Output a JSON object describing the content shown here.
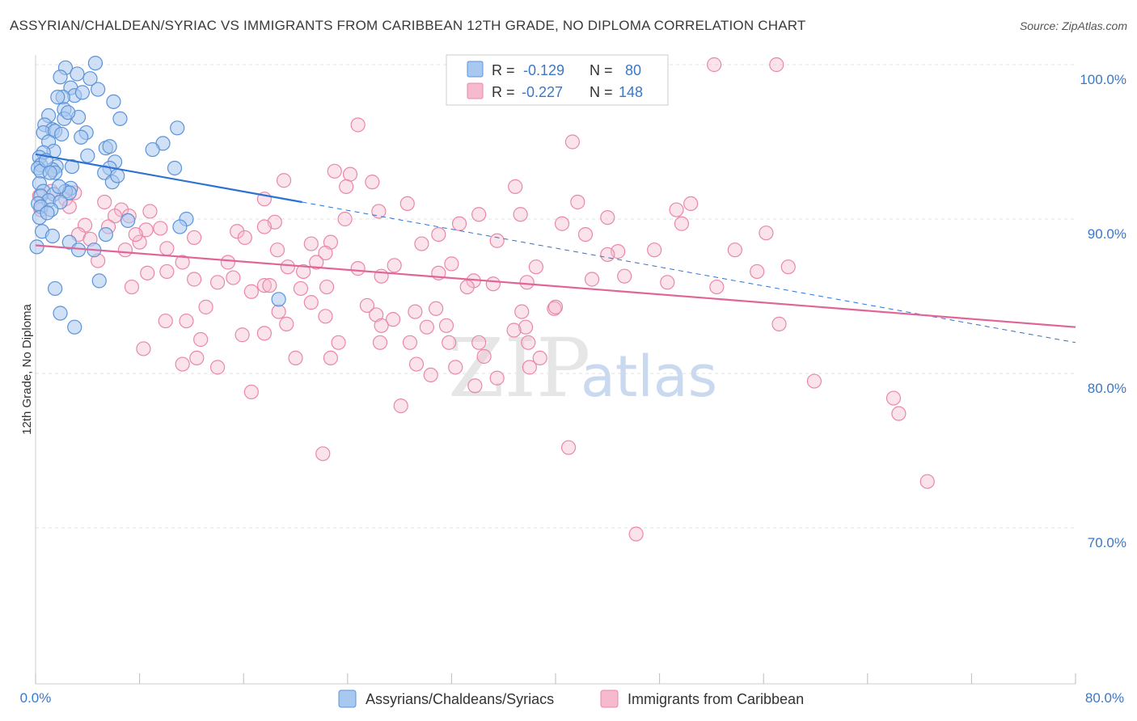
{
  "header": {
    "title": "ASSYRIAN/CHALDEAN/SYRIAC VS IMMIGRANTS FROM CARIBBEAN 12TH GRADE, NO DIPLOMA CORRELATION CHART",
    "source": "Source: ZipAtlas.com"
  },
  "watermark": {
    "zip": "ZIP",
    "atlas": "atlas"
  },
  "legend": {
    "rows": [
      {
        "r_label": "R =",
        "r_value": "-0.129",
        "n_label": "N =",
        "n_value": "80",
        "color": "#a9c8f0"
      },
      {
        "r_label": "R =",
        "r_value": "-0.227",
        "n_label": "N =",
        "n_value": "148",
        "color": "#f6b9cd"
      }
    ]
  },
  "chart_data": {
    "type": "scatter",
    "ylabel": "12th Grade, No Diploma",
    "xlim": [
      0,
      80
    ],
    "ylim": [
      60,
      101.5
    ],
    "x_tick_labels": [
      "0.0%",
      "80.0%"
    ],
    "y_ticks": [
      {
        "value": 100,
        "label": "100.0%"
      },
      {
        "value": 90,
        "label": "90.0%"
      },
      {
        "value": 80,
        "label": "80.0%"
      },
      {
        "value": 70,
        "label": "70.0%"
      }
    ],
    "grid": "horizontal dashed",
    "series": [
      {
        "name": "Assyrians/Chaldeans/Syriacs",
        "color": "#5b93d8",
        "fill": "#a9c8f0",
        "trend": {
          "x0": 0,
          "y0": 94.2,
          "x1": 20.5,
          "y1": 91.1,
          "dash_to_x": 80,
          "dash_to_y": 82.0,
          "color": "#2d72d2"
        },
        "points": [
          [
            2.3,
            99.8
          ],
          [
            4.6,
            100.1
          ],
          [
            3.2,
            99.4
          ],
          [
            1.9,
            99.2
          ],
          [
            4.8,
            98.4
          ],
          [
            2.7,
            98.5
          ],
          [
            3.0,
            98.0
          ],
          [
            2.1,
            97.9
          ],
          [
            1.7,
            97.9
          ],
          [
            6.0,
            97.6
          ],
          [
            2.2,
            97.1
          ],
          [
            1.0,
            96.7
          ],
          [
            2.2,
            96.5
          ],
          [
            3.3,
            96.6
          ],
          [
            6.5,
            96.5
          ],
          [
            0.7,
            96.1
          ],
          [
            1.3,
            95.8
          ],
          [
            0.6,
            95.6
          ],
          [
            3.9,
            95.6
          ],
          [
            1.5,
            95.7
          ],
          [
            10.9,
            95.9
          ],
          [
            3.5,
            95.3
          ],
          [
            1.0,
            95.0
          ],
          [
            9.8,
            94.9
          ],
          [
            5.4,
            94.6
          ],
          [
            5.7,
            94.7
          ],
          [
            9.0,
            94.5
          ],
          [
            1.4,
            94.4
          ],
          [
            0.6,
            94.3
          ],
          [
            4.0,
            94.1
          ],
          [
            0.3,
            94.0
          ],
          [
            6.1,
            93.7
          ],
          [
            2.8,
            93.4
          ],
          [
            0.4,
            93.5
          ],
          [
            0.2,
            93.3
          ],
          [
            1.6,
            93.4
          ],
          [
            5.7,
            93.3
          ],
          [
            0.4,
            93.1
          ],
          [
            10.7,
            93.3
          ],
          [
            1.3,
            93.2
          ],
          [
            1.5,
            93.0
          ],
          [
            5.3,
            93.0
          ],
          [
            5.9,
            92.4
          ],
          [
            0.3,
            92.3
          ],
          [
            2.7,
            92.0
          ],
          [
            0.6,
            91.8
          ],
          [
            2.3,
            91.8
          ],
          [
            1.4,
            91.6
          ],
          [
            0.4,
            91.5
          ],
          [
            2.6,
            91.7
          ],
          [
            1.0,
            91.2
          ],
          [
            1.9,
            91.1
          ],
          [
            0.2,
            91.0
          ],
          [
            0.4,
            90.8
          ],
          [
            1.2,
            90.6
          ],
          [
            11.6,
            90.0
          ],
          [
            7.1,
            89.9
          ],
          [
            11.1,
            89.5
          ],
          [
            0.5,
            89.2
          ],
          [
            1.3,
            88.9
          ],
          [
            5.4,
            89.0
          ],
          [
            2.6,
            88.5
          ],
          [
            4.5,
            88.0
          ],
          [
            3.3,
            88.0
          ],
          [
            0.1,
            88.2
          ],
          [
            4.9,
            86.0
          ],
          [
            1.5,
            85.5
          ],
          [
            18.7,
            84.8
          ],
          [
            1.9,
            83.9
          ],
          [
            3.0,
            83.0
          ],
          [
            0.3,
            90.1
          ],
          [
            1.8,
            92.1
          ],
          [
            0.9,
            90.4
          ],
          [
            2.5,
            96.9
          ],
          [
            3.6,
            98.2
          ],
          [
            4.2,
            99.1
          ],
          [
            0.8,
            93.8
          ],
          [
            6.3,
            92.8
          ],
          [
            2.0,
            95.5
          ],
          [
            1.1,
            93.0
          ]
        ]
      },
      {
        "name": "Immigrants from Caribbean",
        "color": "#ea87a8",
        "fill": "#f6b9cd",
        "trend": {
          "x0": 0,
          "y0": 88.3,
          "x1": 80,
          "y1": 83.0,
          "color": "#e06596"
        },
        "points": [
          [
            52.2,
            100.0
          ],
          [
            57.0,
            100.0
          ],
          [
            24.8,
            96.1
          ],
          [
            41.3,
            95.0
          ],
          [
            23.0,
            93.1
          ],
          [
            24.2,
            92.9
          ],
          [
            19.1,
            92.5
          ],
          [
            25.9,
            92.4
          ],
          [
            23.9,
            92.1
          ],
          [
            36.9,
            92.1
          ],
          [
            17.6,
            91.3
          ],
          [
            28.6,
            91.0
          ],
          [
            41.7,
            91.1
          ],
          [
            50.4,
            91.0
          ],
          [
            1.2,
            91.8
          ],
          [
            3.0,
            91.7
          ],
          [
            2.3,
            91.3
          ],
          [
            5.3,
            91.1
          ],
          [
            2.6,
            90.8
          ],
          [
            0.4,
            90.6
          ],
          [
            0.3,
            91.5
          ],
          [
            6.6,
            90.6
          ],
          [
            8.8,
            90.5
          ],
          [
            26.4,
            90.5
          ],
          [
            34.1,
            90.3
          ],
          [
            37.3,
            90.3
          ],
          [
            49.3,
            90.6
          ],
          [
            44.0,
            90.1
          ],
          [
            6.1,
            90.2
          ],
          [
            7.2,
            90.2
          ],
          [
            23.8,
            90.0
          ],
          [
            40.5,
            89.7
          ],
          [
            18.4,
            89.8
          ],
          [
            17.6,
            89.5
          ],
          [
            32.6,
            89.7
          ],
          [
            5.6,
            89.5
          ],
          [
            3.8,
            89.6
          ],
          [
            15.5,
            89.2
          ],
          [
            31.0,
            89.0
          ],
          [
            42.3,
            89.0
          ],
          [
            49.7,
            89.7
          ],
          [
            56.2,
            89.1
          ],
          [
            3.3,
            89.0
          ],
          [
            8.5,
            89.3
          ],
          [
            12.2,
            88.8
          ],
          [
            16.1,
            88.8
          ],
          [
            21.2,
            88.4
          ],
          [
            22.7,
            88.5
          ],
          [
            29.7,
            88.4
          ],
          [
            35.5,
            88.6
          ],
          [
            8.0,
            88.5
          ],
          [
            4.2,
            88.7
          ],
          [
            6.9,
            88.0
          ],
          [
            10.1,
            88.1
          ],
          [
            18.6,
            88.0
          ],
          [
            22.3,
            87.8
          ],
          [
            21.6,
            87.2
          ],
          [
            14.8,
            87.2
          ],
          [
            4.8,
            87.3
          ],
          [
            11.3,
            87.2
          ],
          [
            32.0,
            87.1
          ],
          [
            44.8,
            87.9
          ],
          [
            47.6,
            88.0
          ],
          [
            44.0,
            87.7
          ],
          [
            53.8,
            88.0
          ],
          [
            27.6,
            87.0
          ],
          [
            38.5,
            86.9
          ],
          [
            57.9,
            86.9
          ],
          [
            20.6,
            86.6
          ],
          [
            10.1,
            86.6
          ],
          [
            12.2,
            86.1
          ],
          [
            14.0,
            85.9
          ],
          [
            31.0,
            86.5
          ],
          [
            26.6,
            86.3
          ],
          [
            42.8,
            86.1
          ],
          [
            48.6,
            85.9
          ],
          [
            33.7,
            86.0
          ],
          [
            37.8,
            85.9
          ],
          [
            15.2,
            86.2
          ],
          [
            35.2,
            85.8
          ],
          [
            8.6,
            86.5
          ],
          [
            55.5,
            86.6
          ],
          [
            7.4,
            85.6
          ],
          [
            16.6,
            85.3
          ],
          [
            17.6,
            85.7
          ],
          [
            18.0,
            85.7
          ],
          [
            20.4,
            85.5
          ],
          [
            22.4,
            85.6
          ],
          [
            52.4,
            85.6
          ],
          [
            33.2,
            85.6
          ],
          [
            13.1,
            84.3
          ],
          [
            21.2,
            84.6
          ],
          [
            25.5,
            84.4
          ],
          [
            26.2,
            83.8
          ],
          [
            29.2,
            84.0
          ],
          [
            30.8,
            84.2
          ],
          [
            37.4,
            84.0
          ],
          [
            39.9,
            84.2
          ],
          [
            27.5,
            83.5
          ],
          [
            30.1,
            83.0
          ],
          [
            10.0,
            83.4
          ],
          [
            11.6,
            83.4
          ],
          [
            18.7,
            84.0
          ],
          [
            19.3,
            83.2
          ],
          [
            22.3,
            83.7
          ],
          [
            26.6,
            83.1
          ],
          [
            31.6,
            83.1
          ],
          [
            37.7,
            83.0
          ],
          [
            57.2,
            83.2
          ],
          [
            15.9,
            82.5
          ],
          [
            17.6,
            82.6
          ],
          [
            23.3,
            82.0
          ],
          [
            26.5,
            82.0
          ],
          [
            28.8,
            82.0
          ],
          [
            31.8,
            82.0
          ],
          [
            37.9,
            82.0
          ],
          [
            12.7,
            82.2
          ],
          [
            8.3,
            81.6
          ],
          [
            12.4,
            81.0
          ],
          [
            20.0,
            81.0
          ],
          [
            22.7,
            81.0
          ],
          [
            38.8,
            81.0
          ],
          [
            34.5,
            81.1
          ],
          [
            11.3,
            80.6
          ],
          [
            14.0,
            80.4
          ],
          [
            29.3,
            80.6
          ],
          [
            30.4,
            79.9
          ],
          [
            32.3,
            80.4
          ],
          [
            35.5,
            79.7
          ],
          [
            38.0,
            80.4
          ],
          [
            59.9,
            79.5
          ],
          [
            33.8,
            79.2
          ],
          [
            16.6,
            78.8
          ],
          [
            66.0,
            78.4
          ],
          [
            28.1,
            77.9
          ],
          [
            66.4,
            77.4
          ],
          [
            41.0,
            75.2
          ],
          [
            22.1,
            74.8
          ],
          [
            68.6,
            73.0
          ],
          [
            46.2,
            69.6
          ],
          [
            36.8,
            82.8
          ],
          [
            40.0,
            84.3
          ],
          [
            34.1,
            82.0
          ],
          [
            9.6,
            89.4
          ],
          [
            7.7,
            89.0
          ],
          [
            45.3,
            86.3
          ],
          [
            19.4,
            86.9
          ],
          [
            24.8,
            86.8
          ]
        ]
      }
    ]
  },
  "bottom_legend": [
    {
      "label": "Assyrians/Chaldeans/Syriacs",
      "color": "#a9c8f0",
      "stroke": "#5b93d8"
    },
    {
      "label": "Immigrants from Caribbean",
      "color": "#f6b9cd",
      "stroke": "#ea87a8"
    }
  ]
}
